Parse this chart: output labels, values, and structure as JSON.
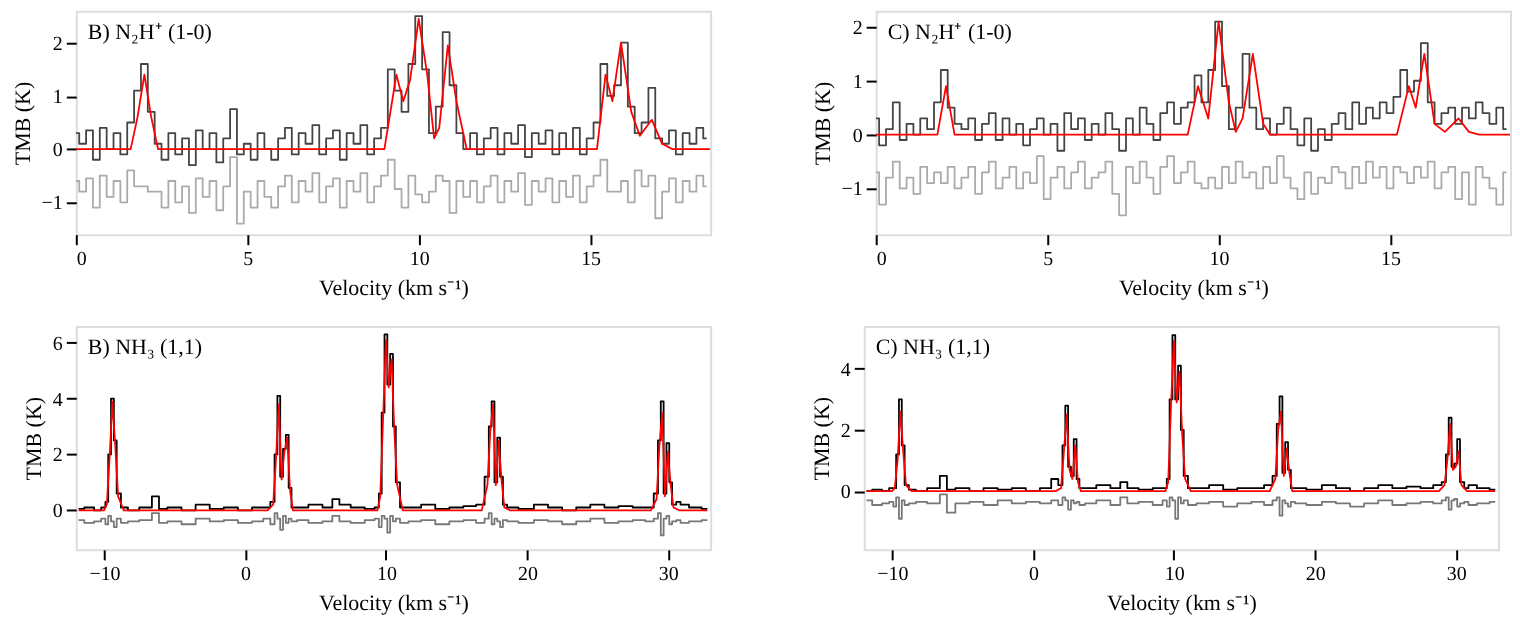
{
  "chart_data": [
    {
      "type": "step",
      "title": "B) N₂H⁺ (1-0)",
      "xlabel": "Velocity (km s⁻¹)",
      "ylabel": "TMB (K)",
      "xlim": [
        0,
        18.5
      ],
      "ylim": [
        -1.6,
        2.6
      ],
      "xticks": [
        0,
        5,
        10,
        15
      ],
      "yticks": [
        -1,
        0,
        1,
        2
      ],
      "x": [
        0,
        0.2,
        0.4,
        0.6,
        0.8,
        1.0,
        1.2,
        1.4,
        1.6,
        1.8,
        2.0,
        2.2,
        2.4,
        2.6,
        2.8,
        3.0,
        3.2,
        3.4,
        3.6,
        3.8,
        4.0,
        4.2,
        4.4,
        4.6,
        4.8,
        5.0,
        5.2,
        5.4,
        5.6,
        5.8,
        6.0,
        6.2,
        6.4,
        6.6,
        6.8,
        7.0,
        7.2,
        7.4,
        7.6,
        7.8,
        8.0,
        8.2,
        8.4,
        8.6,
        8.8,
        9.0,
        9.2,
        9.4,
        9.6,
        9.8,
        10.0,
        10.2,
        10.4,
        10.6,
        10.8,
        11.0,
        11.2,
        11.4,
        11.6,
        11.8,
        12.0,
        12.2,
        12.4,
        12.6,
        12.8,
        13.0,
        13.2,
        13.4,
        13.6,
        13.8,
        14.0,
        14.2,
        14.4,
        14.6,
        14.8,
        15.0,
        15.2,
        15.4,
        15.6,
        15.8,
        16.0,
        16.2,
        16.4,
        16.6,
        16.8,
        17.0,
        17.2,
        17.4,
        17.6,
        17.8,
        18.0,
        18.2,
        18.4
      ],
      "series": [
        {
          "color": "#aaaaaa",
          "values": [
            -0.6,
            -0.8,
            -0.55,
            -1.1,
            -0.5,
            -0.9,
            -0.6,
            -1.0,
            -0.4,
            -0.7,
            -0.7,
            -0.8,
            -0.8,
            -1.1,
            -0.6,
            -1.0,
            -0.7,
            -1.2,
            -0.55,
            -0.9,
            -0.6,
            -1.15,
            -0.7,
            -0.15,
            -1.4,
            -0.8,
            -1.1,
            -0.6,
            -0.9,
            -1.1,
            -0.7,
            -0.5,
            -1.0,
            -0.6,
            -0.8,
            -0.45,
            -1.0,
            -0.7,
            -0.55,
            -1.1,
            -0.6,
            -0.8,
            -0.45,
            -1.0,
            -0.7,
            -0.5,
            -0.2,
            -0.75,
            -1.1,
            -0.5,
            -0.85,
            -1.0,
            -0.8,
            -0.5,
            -0.6,
            -1.2,
            -0.6,
            -0.9,
            -0.6,
            -1.0,
            -0.7,
            -0.5,
            -1.0,
            -0.6,
            -0.8,
            -0.45,
            -1.05,
            -0.6,
            -0.8,
            -0.55,
            -1.0,
            -0.6,
            -0.9,
            -0.5,
            -1.0,
            -0.7,
            -0.5,
            -0.2,
            -0.8,
            -0.8,
            -0.6,
            -1.0,
            -0.4,
            -0.7,
            -0.5,
            -1.3,
            -0.8,
            -0.55,
            -1.0,
            -0.6,
            -0.8,
            -0.5,
            -0.7
          ]
        },
        {
          "color": "#444444",
          "values": [
            0.3,
            0.1,
            0.35,
            -0.2,
            0.4,
            0.0,
            0.3,
            -0.1,
            0.5,
            1.1,
            1.6,
            0.7,
            0.1,
            -0.2,
            0.3,
            -0.1,
            0.2,
            -0.3,
            0.35,
            0.0,
            0.3,
            -0.25,
            0.2,
            0.75,
            -0.1,
            0.1,
            -0.2,
            0.3,
            0.0,
            -0.2,
            0.2,
            0.4,
            -0.1,
            0.3,
            0.1,
            0.45,
            -0.1,
            0.2,
            0.35,
            -0.2,
            0.3,
            0.1,
            0.45,
            -0.1,
            0.2,
            0.4,
            1.5,
            1.1,
            0.7,
            1.6,
            2.5,
            1.5,
            0.3,
            0.8,
            2.2,
            1.2,
            0.3,
            0.0,
            0.3,
            -0.1,
            0.2,
            0.4,
            -0.1,
            0.3,
            0.1,
            0.45,
            -0.15,
            0.3,
            0.1,
            0.35,
            -0.1,
            0.3,
            0.0,
            0.4,
            -0.1,
            0.2,
            0.5,
            1.6,
            1.0,
            1.2,
            2.0,
            0.8,
            0.3,
            0.5,
            1.15,
            0.2,
            0.1,
            0.35,
            -0.1,
            0.3,
            0.1,
            0.4,
            0.2
          ]
        },
        {
          "type": "line",
          "color": "#ff0000",
          "x": [
            0,
            1.6,
            1.8,
            2.0,
            2.2,
            2.4,
            9.0,
            9.2,
            9.35,
            9.55,
            9.75,
            10.0,
            10.25,
            10.45,
            10.6,
            10.85,
            11.1,
            11.4,
            15.2,
            15.45,
            15.65,
            15.9,
            16.2,
            16.45,
            16.8,
            17.1,
            17.4,
            18.5
          ],
          "values": [
            0,
            0,
            0.6,
            1.4,
            0.6,
            0,
            0,
            0.8,
            1.4,
            0.9,
            1.3,
            2.45,
            1.4,
            0.2,
            0.4,
            1.95,
            0.9,
            0,
            0,
            1.4,
            0.9,
            2.0,
            0.7,
            0.25,
            0.55,
            0.1,
            0,
            0
          ]
        }
      ]
    },
    {
      "type": "step",
      "title": "C) N₂H⁺ (1-0)",
      "xlabel": "Velocity (km s⁻¹)",
      "ylabel": "TMB (K)",
      "xlim": [
        0,
        18.5
      ],
      "ylim": [
        -1.85,
        2.3
      ],
      "xticks": [
        0,
        5,
        10,
        15
      ],
      "yticks": [
        -1,
        0,
        1,
        2
      ],
      "x": [
        0,
        0.2,
        0.4,
        0.6,
        0.8,
        1.0,
        1.2,
        1.4,
        1.6,
        1.8,
        2.0,
        2.2,
        2.4,
        2.6,
        2.8,
        3.0,
        3.2,
        3.4,
        3.6,
        3.8,
        4.0,
        4.2,
        4.4,
        4.6,
        4.8,
        5.0,
        5.2,
        5.4,
        5.6,
        5.8,
        6.0,
        6.2,
        6.4,
        6.6,
        6.8,
        7.0,
        7.2,
        7.4,
        7.6,
        7.8,
        8.0,
        8.2,
        8.4,
        8.6,
        8.8,
        9.0,
        9.2,
        9.4,
        9.6,
        9.8,
        10.0,
        10.2,
        10.4,
        10.6,
        10.8,
        11.0,
        11.2,
        11.4,
        11.6,
        11.8,
        12.0,
        12.2,
        12.4,
        12.6,
        12.8,
        13.0,
        13.2,
        13.4,
        13.6,
        13.8,
        14.0,
        14.2,
        14.4,
        14.6,
        14.8,
        15.0,
        15.2,
        15.4,
        15.6,
        15.8,
        16.0,
        16.2,
        16.4,
        16.6,
        16.8,
        17.0,
        17.2,
        17.4,
        17.6,
        17.8,
        18.0,
        18.2,
        18.4
      ],
      "series": [
        {
          "color": "#aaaaaa",
          "values": [
            -0.7,
            -1.3,
            -0.8,
            -0.5,
            -1.0,
            -0.8,
            -1.1,
            -0.6,
            -0.9,
            -0.7,
            -0.9,
            -0.6,
            -1.0,
            -0.8,
            -0.6,
            -1.1,
            -0.7,
            -0.5,
            -1.0,
            -0.8,
            -0.6,
            -1.0,
            -0.7,
            -0.9,
            -0.4,
            -1.2,
            -0.8,
            -0.6,
            -1.0,
            -0.7,
            -0.5,
            -1.0,
            -0.8,
            -0.7,
            -0.5,
            -1.1,
            -1.5,
            -0.6,
            -0.9,
            -0.5,
            -0.8,
            -1.1,
            -0.6,
            -0.4,
            -0.9,
            -0.7,
            -0.5,
            -0.9,
            -1.0,
            -0.8,
            -1.0,
            -0.6,
            -0.9,
            -0.5,
            -0.8,
            -0.7,
            -1.0,
            -0.6,
            -0.9,
            -0.4,
            -0.8,
            -1.0,
            -1.2,
            -0.7,
            -1.1,
            -0.8,
            -0.9,
            -0.6,
            -0.7,
            -1.0,
            -0.6,
            -0.9,
            -0.5,
            -0.8,
            -0.6,
            -1.0,
            -0.6,
            -0.7,
            -0.9,
            -0.6,
            -0.8,
            -0.5,
            -1.0,
            -0.7,
            -0.6,
            -1.2,
            -0.7,
            -1.3,
            -0.6,
            -0.8,
            -1.0,
            -1.3,
            -0.7
          ]
        },
        {
          "color": "#444444",
          "values": [
            0.3,
            -0.2,
            0.1,
            0.6,
            -0.1,
            0.2,
            0.0,
            0.3,
            0.1,
            0.6,
            1.2,
            0.5,
            0.2,
            0.1,
            0.3,
            -0.1,
            0.2,
            0.4,
            -0.1,
            0.3,
            0.0,
            0.2,
            -0.2,
            0.1,
            0.3,
            0.0,
            0.2,
            -0.3,
            0.4,
            0.1,
            0.3,
            -0.1,
            0.2,
            0.0,
            0.4,
            0.1,
            -0.3,
            0.3,
            0.0,
            0.5,
            0.2,
            -0.1,
            0.4,
            0.6,
            0.2,
            0.5,
            0.6,
            1.1,
            0.6,
            1.2,
            2.1,
            0.9,
            0.1,
            0.5,
            1.5,
            0.5,
            0.1,
            0.3,
            0.0,
            0.2,
            0.5,
            0.1,
            -0.2,
            0.3,
            -0.3,
            0.1,
            -0.1,
            0.2,
            0.4,
            0.1,
            0.6,
            0.2,
            0.5,
            0.3,
            0.6,
            0.4,
            0.7,
            1.2,
            0.8,
            1.0,
            1.7,
            0.6,
            0.2,
            0.4,
            0.5,
            0.2,
            0.5,
            0.3,
            0.6,
            0.4,
            0.2,
            0.5,
            0.1
          ]
        },
        {
          "type": "line",
          "color": "#ff0000",
          "x": [
            0,
            1.8,
            2.05,
            2.3,
            9.1,
            9.4,
            9.7,
            10.0,
            10.3,
            10.5,
            10.7,
            11.0,
            11.3,
            11.5,
            15.2,
            15.55,
            15.75,
            16.0,
            16.3,
            16.6,
            17.0,
            17.3,
            17.6,
            18.5
          ],
          "values": [
            0,
            0,
            0.9,
            0,
            0,
            0.9,
            0.3,
            2.1,
            0.6,
            0.05,
            0.3,
            1.5,
            0.2,
            0,
            0,
            0.9,
            0.5,
            1.5,
            0.2,
            0.05,
            0.3,
            0.05,
            0,
            0
          ]
        }
      ]
    },
    {
      "type": "step",
      "title": "B) NH₃ (1,1)",
      "xlabel": "Velocity (km s⁻¹)",
      "ylabel": "TMB (K)",
      "xlim": [
        -12,
        33
      ],
      "ylim": [
        -1.4,
        6.6
      ],
      "xticks": [
        -10,
        0,
        10,
        20,
        30
      ],
      "yticks": [
        0,
        2,
        4,
        6
      ],
      "x": [
        -11.8,
        -11,
        -10.4,
        -10,
        -9.8,
        -9.6,
        -9.4,
        -9.2,
        -9.0,
        -8.6,
        -8,
        -7,
        -6.2,
        -6,
        -5,
        -4,
        -3,
        -2,
        -1,
        0,
        1,
        1.6,
        2.0,
        2.2,
        2.4,
        2.6,
        2.8,
        3.0,
        3.2,
        3.4,
        4,
        5,
        6,
        6.4,
        7,
        8,
        9,
        9.4,
        9.6,
        9.8,
        10,
        10.2,
        10.4,
        10.6,
        10.8,
        11.2,
        12,
        13,
        14,
        15,
        16,
        16.8,
        17.2,
        17.4,
        17.6,
        17.8,
        18.0,
        18.2,
        18.4,
        18.8,
        20,
        21,
        22,
        23,
        24,
        25,
        26,
        27,
        28,
        28.8,
        29.2,
        29.4,
        29.6,
        29.8,
        30.0,
        30.2,
        30.4,
        30.8,
        31,
        32,
        32.8
      ],
      "series": [
        {
          "color": "#777777",
          "values": [
            -0.35,
            -0.45,
            -0.4,
            -0.3,
            -0.5,
            -0.2,
            -0.4,
            -0.6,
            -0.3,
            -0.45,
            -0.4,
            -0.35,
            -0.1,
            -0.45,
            -0.4,
            -0.5,
            -0.3,
            -0.4,
            -0.35,
            -0.45,
            -0.4,
            -0.3,
            -0.5,
            -0.1,
            -0.3,
            -0.7,
            -0.2,
            -0.45,
            -0.3,
            -0.4,
            -0.35,
            -0.45,
            -0.4,
            -0.2,
            -0.4,
            -0.45,
            -0.35,
            -0.3,
            -0.6,
            -0.2,
            -0.3,
            -0.8,
            -0.2,
            -0.4,
            -0.3,
            -0.45,
            -0.4,
            -0.35,
            -0.5,
            -0.4,
            -0.35,
            -0.45,
            -0.3,
            -0.1,
            -0.5,
            -0.3,
            -0.4,
            -0.6,
            -0.35,
            -0.4,
            -0.45,
            -0.35,
            -0.4,
            -0.5,
            -0.4,
            -0.3,
            -0.45,
            -0.4,
            -0.35,
            -0.4,
            -0.3,
            -0.1,
            -0.9,
            -0.3,
            -0.2,
            -0.5,
            -0.4,
            -0.35,
            -0.45,
            -0.4,
            -0.35
          ]
        },
        {
          "color": "#000000",
          "values": [
            0.05,
            0.1,
            0.0,
            0.1,
            0.3,
            2.0,
            4.0,
            2.5,
            0.6,
            0.1,
            0.0,
            0.1,
            0.5,
            0.05,
            0.1,
            0.0,
            0.2,
            0.05,
            0.1,
            0.0,
            0.1,
            0.1,
            0.3,
            2.0,
            4.1,
            1.2,
            2.2,
            2.7,
            0.8,
            0.1,
            0.1,
            0.2,
            0.1,
            0.4,
            0.2,
            0.1,
            0.05,
            0.1,
            0.6,
            3.5,
            6.3,
            4.5,
            5.6,
            3.0,
            1.0,
            0.1,
            0.1,
            0.2,
            0.05,
            0.1,
            0.15,
            0.2,
            1.2,
            3.0,
            3.9,
            1.0,
            2.6,
            1.2,
            0.2,
            0.1,
            0.05,
            0.2,
            0.1,
            0.0,
            0.1,
            0.2,
            0.1,
            0.15,
            0.1,
            0.1,
            0.6,
            2.5,
            3.9,
            0.6,
            2.4,
            1.0,
            0.2,
            0.3,
            0.2,
            0.1,
            0.05
          ]
        },
        {
          "type": "line",
          "color": "#ff0000",
          "values": [
            0,
            0,
            0,
            0,
            0.2,
            1.9,
            3.9,
            2.3,
            0.5,
            0,
            0,
            0,
            0,
            0,
            0,
            0,
            0,
            0,
            0,
            0,
            0,
            0,
            0.2,
            1.8,
            3.8,
            1.1,
            2.1,
            2.6,
            0.7,
            0,
            0,
            0,
            0,
            0,
            0,
            0,
            0,
            0,
            0.5,
            3.3,
            6.1,
            4.4,
            5.4,
            2.8,
            0.9,
            0,
            0,
            0,
            0,
            0,
            0,
            0,
            0.9,
            2.8,
            3.8,
            0.9,
            2.5,
            1.1,
            0.1,
            0,
            0,
            0,
            0,
            0,
            0,
            0,
            0,
            0,
            0,
            0,
            0.4,
            2.3,
            3.5,
            0.5,
            2.1,
            0.9,
            0.1,
            0,
            0,
            0,
            0
          ]
        }
      ]
    },
    {
      "type": "step",
      "title": "C) NH₃ (1,1)",
      "xlabel": "Velocity (km s⁻¹)",
      "ylabel": "TMB (K)",
      "xlim": [
        -12,
        33
      ],
      "ylim": [
        -1.9,
        5.4
      ],
      "xticks": [
        -10,
        0,
        10,
        20,
        30
      ],
      "yticks": [
        0,
        2,
        4
      ],
      "x": [
        -11.8,
        -11,
        -10.4,
        -10,
        -9.8,
        -9.6,
        -9.4,
        -9.2,
        -9.0,
        -8.6,
        -8,
        -7,
        -6.2,
        -6,
        -5,
        -4,
        -3,
        -2,
        -1,
        0,
        1,
        1.6,
        2.0,
        2.2,
        2.4,
        2.6,
        2.8,
        3.0,
        3.2,
        3.4,
        4,
        5,
        6,
        6.4,
        7,
        8,
        9,
        9.4,
        9.6,
        9.8,
        10,
        10.2,
        10.4,
        10.6,
        10.8,
        11.2,
        12,
        13,
        14,
        15,
        16,
        16.8,
        17.2,
        17.4,
        17.6,
        17.8,
        18.0,
        18.2,
        18.4,
        18.8,
        20,
        21,
        22,
        23,
        24,
        25,
        26,
        27,
        28,
        28.8,
        29.2,
        29.4,
        29.6,
        29.8,
        30.0,
        30.2,
        30.4,
        30.8,
        31,
        32,
        32.8
      ],
      "series": [
        {
          "color": "#777777",
          "values": [
            -0.3,
            -0.45,
            -0.4,
            -0.35,
            -0.5,
            -0.2,
            -0.9,
            -0.3,
            -0.45,
            -0.4,
            -0.35,
            -0.4,
            -0.1,
            -0.7,
            -0.4,
            -0.35,
            -0.45,
            -0.3,
            -0.4,
            -0.35,
            -0.4,
            -0.3,
            -0.45,
            -0.2,
            -0.3,
            -0.6,
            -0.3,
            -0.4,
            -0.35,
            -0.45,
            -0.4,
            -0.3,
            -0.45,
            -0.2,
            -0.4,
            -0.35,
            -0.45,
            -0.3,
            -0.5,
            -0.2,
            -0.3,
            -0.9,
            -0.2,
            -0.4,
            -0.3,
            -0.45,
            -0.4,
            -0.35,
            -0.5,
            -0.4,
            -0.35,
            -0.45,
            -0.3,
            -0.2,
            -0.8,
            -0.3,
            -0.4,
            -0.5,
            -0.35,
            -0.4,
            -0.45,
            -0.35,
            -0.4,
            -0.5,
            -0.4,
            -0.3,
            -0.45,
            -0.4,
            -0.35,
            -0.4,
            -0.3,
            -0.2,
            -0.6,
            -0.3,
            -0.25,
            -0.5,
            -0.4,
            -0.35,
            -0.45,
            -0.4,
            -0.35
          ]
        },
        {
          "color": "#000000",
          "values": [
            0.0,
            0.05,
            0.0,
            0.1,
            0.1,
            1.2,
            3.0,
            1.5,
            0.2,
            0.05,
            0.0,
            0.1,
            0.5,
            0.05,
            0.1,
            0.0,
            0.1,
            0.05,
            0.1,
            0.0,
            0.1,
            0.4,
            0.2,
            1.5,
            2.8,
            0.8,
            0.5,
            1.7,
            0.4,
            0.1,
            0.1,
            0.2,
            0.1,
            0.3,
            0.1,
            0.05,
            0.1,
            0.1,
            0.4,
            3.0,
            5.1,
            3.0,
            4.1,
            2.0,
            0.5,
            0.1,
            0.1,
            0.2,
            0.05,
            0.1,
            0.1,
            0.2,
            0.5,
            2.2,
            3.1,
            0.6,
            1.6,
            0.7,
            0.1,
            0.1,
            0.05,
            0.2,
            0.1,
            0.0,
            0.1,
            0.2,
            0.1,
            0.15,
            0.1,
            0.2,
            0.3,
            1.2,
            2.4,
            0.8,
            0.9,
            1.7,
            0.3,
            0.1,
            0.2,
            0.1,
            0.05
          ]
        },
        {
          "type": "line",
          "color": "#ff0000",
          "values": [
            0,
            0,
            0,
            0,
            0.1,
            1.0,
            2.6,
            1.3,
            0.2,
            0,
            0,
            0,
            0,
            0,
            0,
            0,
            0,
            0,
            0,
            0,
            0,
            0,
            0.1,
            1.3,
            2.5,
            0.7,
            0.4,
            1.5,
            0.3,
            0,
            0,
            0,
            0,
            0,
            0,
            0,
            0,
            0,
            0.3,
            2.8,
            4.9,
            2.9,
            3.9,
            1.8,
            0.4,
            0,
            0,
            0,
            0,
            0,
            0,
            0,
            0.4,
            2.0,
            2.6,
            0.5,
            1.4,
            0.6,
            0,
            0,
            0,
            0,
            0,
            0,
            0,
            0,
            0,
            0,
            0,
            0,
            0.2,
            1.0,
            2.2,
            0.7,
            0.8,
            1.3,
            0.2,
            0,
            0,
            0,
            0
          ]
        }
      ]
    }
  ]
}
